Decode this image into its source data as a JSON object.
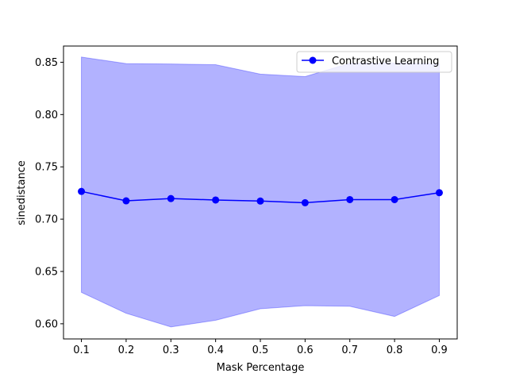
{
  "chart_data": {
    "type": "line",
    "title": "",
    "xlabel": "Mask Percentage",
    "ylabel": "sinedistance",
    "x": [
      0.1,
      0.2,
      0.3,
      0.4,
      0.5,
      0.6,
      0.7,
      0.8,
      0.9
    ],
    "x_tick_labels": [
      "0.1",
      "0.2",
      "0.3",
      "0.4",
      "0.5",
      "0.6",
      "0.7",
      "0.8",
      "0.9"
    ],
    "y_ticks": [
      0.6,
      0.65,
      0.7,
      0.75,
      0.8,
      0.85
    ],
    "y_tick_labels": [
      "0.60",
      "0.65",
      "0.70",
      "0.75",
      "0.80",
      "0.85"
    ],
    "xlim": [
      0.06,
      0.94
    ],
    "ylim": [
      0.5855,
      0.8655
    ],
    "grid": false,
    "legend_position": "upper right",
    "series": [
      {
        "name": "Contrastive Learning",
        "color": "#0000ff",
        "marker": "circle",
        "values": [
          0.7265,
          0.7175,
          0.7197,
          0.7183,
          0.7173,
          0.7157,
          0.7187,
          0.7187,
          0.7253
        ],
        "band_upper": [
          0.855,
          0.8487,
          0.8483,
          0.8477,
          0.8387,
          0.8363,
          0.849,
          0.8493,
          0.8487
        ],
        "band_lower": [
          0.63,
          0.61,
          0.597,
          0.6033,
          0.6143,
          0.6173,
          0.6167,
          0.607,
          0.627
        ],
        "band_color": "#0000ff",
        "band_opacity": 0.3
      }
    ]
  }
}
